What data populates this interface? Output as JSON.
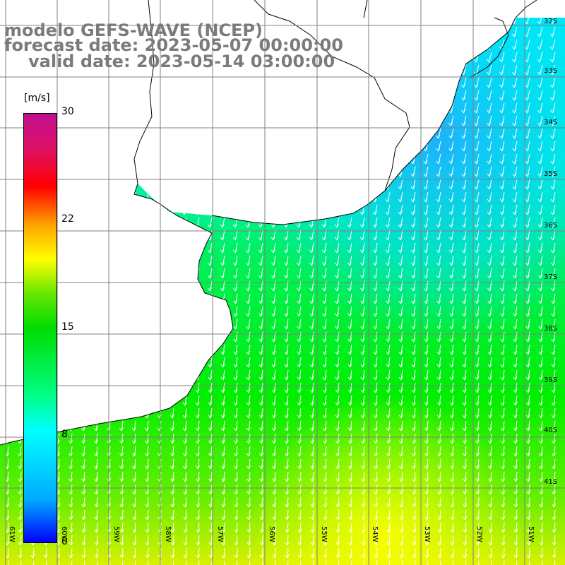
{
  "title": {
    "line1": "modelo GEFS-WAVE (NCEP)",
    "line2": "forecast date: 2023-05-07 00:00:00",
    "line3": "valid date: 2023-05-14 03:00:00"
  },
  "colorbar": {
    "unit": "[m/s]",
    "ticks": [
      "30",
      "22",
      "15",
      "8",
      "0"
    ]
  },
  "axes": {
    "lat_labels": [
      "32S",
      "33S",
      "34S",
      "35S",
      "36S",
      "37S",
      "38S",
      "39S",
      "40S",
      "41S"
    ],
    "lon_labels": [
      "61W",
      "60W",
      "59W",
      "58W",
      "57W",
      "56W",
      "55W",
      "54W",
      "53W",
      "52W",
      "51W"
    ]
  },
  "colors": {
    "land": "#ffffff",
    "coast": "#000000",
    "grid": "#808080",
    "arrow": "#ffffff"
  }
}
